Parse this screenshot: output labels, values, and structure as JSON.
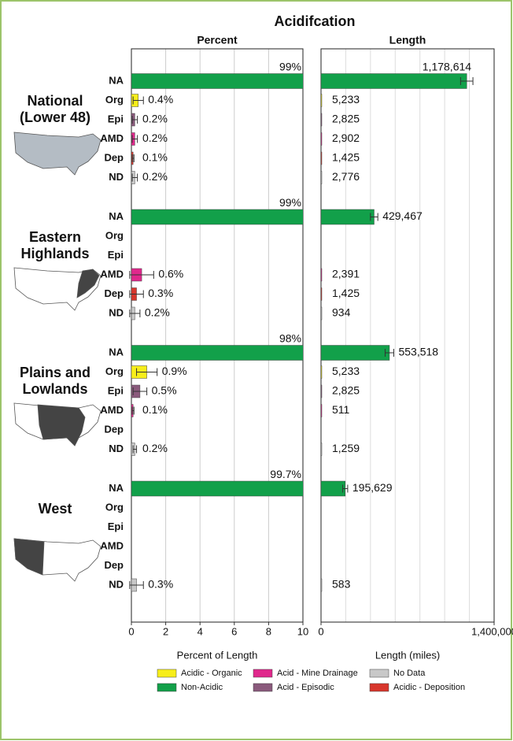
{
  "chart_data": {
    "type": "bar",
    "title": "Acidifcation",
    "groups": [
      "National (Lower 48)",
      "Eastern Highlands",
      "Plains and Lowlands",
      "West"
    ],
    "categories": [
      "NA",
      "Org",
      "Epi",
      "AMD",
      "Dep",
      "ND"
    ],
    "series": [
      {
        "name": "Non-Acidic",
        "color": "#12a04a"
      },
      {
        "name": "Acidic - Organic",
        "color": "#f7ee1a"
      },
      {
        "name": "Acid - Episodic",
        "color": "#8a5a7c"
      },
      {
        "name": "Acid - Mine Drainage",
        "color": "#e0288c"
      },
      {
        "name": "Acidic - Deposition",
        "color": "#d8362c"
      },
      {
        "name": "No Data",
        "color": "#c8c8c8"
      }
    ],
    "panels": [
      {
        "title": "Percent",
        "xlabel": "Percent of Length",
        "xlim": [
          0,
          10
        ],
        "xticks": [
          0,
          2,
          4,
          6,
          8,
          10
        ],
        "grid": true,
        "groups": [
          {
            "values": [
              99,
              0.4,
              0.2,
              0.2,
              0.1,
              0.2
            ],
            "errors": [
              null,
              0.3,
              0.15,
              0.15,
              0.05,
              0.15
            ],
            "value_labels": [
              "99%",
              "0.4%",
              "0.2%",
              "0.2%",
              "0.1%",
              "0.2%"
            ]
          },
          {
            "values": [
              99,
              null,
              null,
              0.6,
              0.3,
              0.2
            ],
            "errors": [
              null,
              null,
              null,
              0.7,
              0.4,
              0.3
            ],
            "value_labels": [
              "99%",
              null,
              null,
              "0.6%",
              "0.3%",
              "0.2%"
            ]
          },
          {
            "values": [
              98,
              0.9,
              0.5,
              0.1,
              null,
              0.2
            ],
            "errors": [
              null,
              0.6,
              0.4,
              0.05,
              null,
              0.1
            ],
            "value_labels": [
              "98%",
              "0.9%",
              "0.5%",
              "0.1%",
              null,
              "0.2%"
            ]
          },
          {
            "values": [
              99.7,
              null,
              null,
              null,
              null,
              0.3
            ],
            "errors": [
              null,
              null,
              null,
              null,
              null,
              0.4
            ],
            "value_labels": [
              "99.7%",
              null,
              null,
              null,
              null,
              "0.3%"
            ]
          }
        ]
      },
      {
        "title": "Length",
        "xlabel": "Length (miles)",
        "xlim": [
          0,
          1400000
        ],
        "xticks": [
          0,
          {
            "value": 1400000,
            "label": "1,400,000"
          }
        ],
        "xgrid": [
          200000,
          400000,
          600000,
          800000,
          1000000,
          1200000
        ],
        "groups": [
          {
            "values": [
              1178614,
              5233,
              2825,
              2902,
              1425,
              2776
            ],
            "errors": [
              50000,
              null,
              null,
              null,
              null,
              null
            ],
            "value_labels": [
              "1,178,614",
              "5,233",
              "2,825",
              "2,902",
              "1,425",
              "2,776"
            ]
          },
          {
            "values": [
              429467,
              null,
              null,
              2391,
              1425,
              934
            ],
            "errors": [
              30000,
              null,
              null,
              null,
              null,
              null
            ],
            "value_labels": [
              "429,467",
              null,
              null,
              "2,391",
              "1,425",
              "934"
            ]
          },
          {
            "values": [
              553518,
              5233,
              2825,
              511,
              null,
              1259
            ],
            "errors": [
              35000,
              null,
              null,
              null,
              null,
              null
            ],
            "value_labels": [
              "553,518",
              "5,233",
              "2,825",
              "511",
              null,
              "1,259"
            ]
          },
          {
            "values": [
              195629,
              null,
              null,
              null,
              null,
              583
            ],
            "errors": [
              20000,
              null,
              null,
              null,
              null,
              null
            ],
            "value_labels": [
              "195,629",
              null,
              null,
              null,
              null,
              "583"
            ]
          }
        ]
      }
    ]
  }
}
